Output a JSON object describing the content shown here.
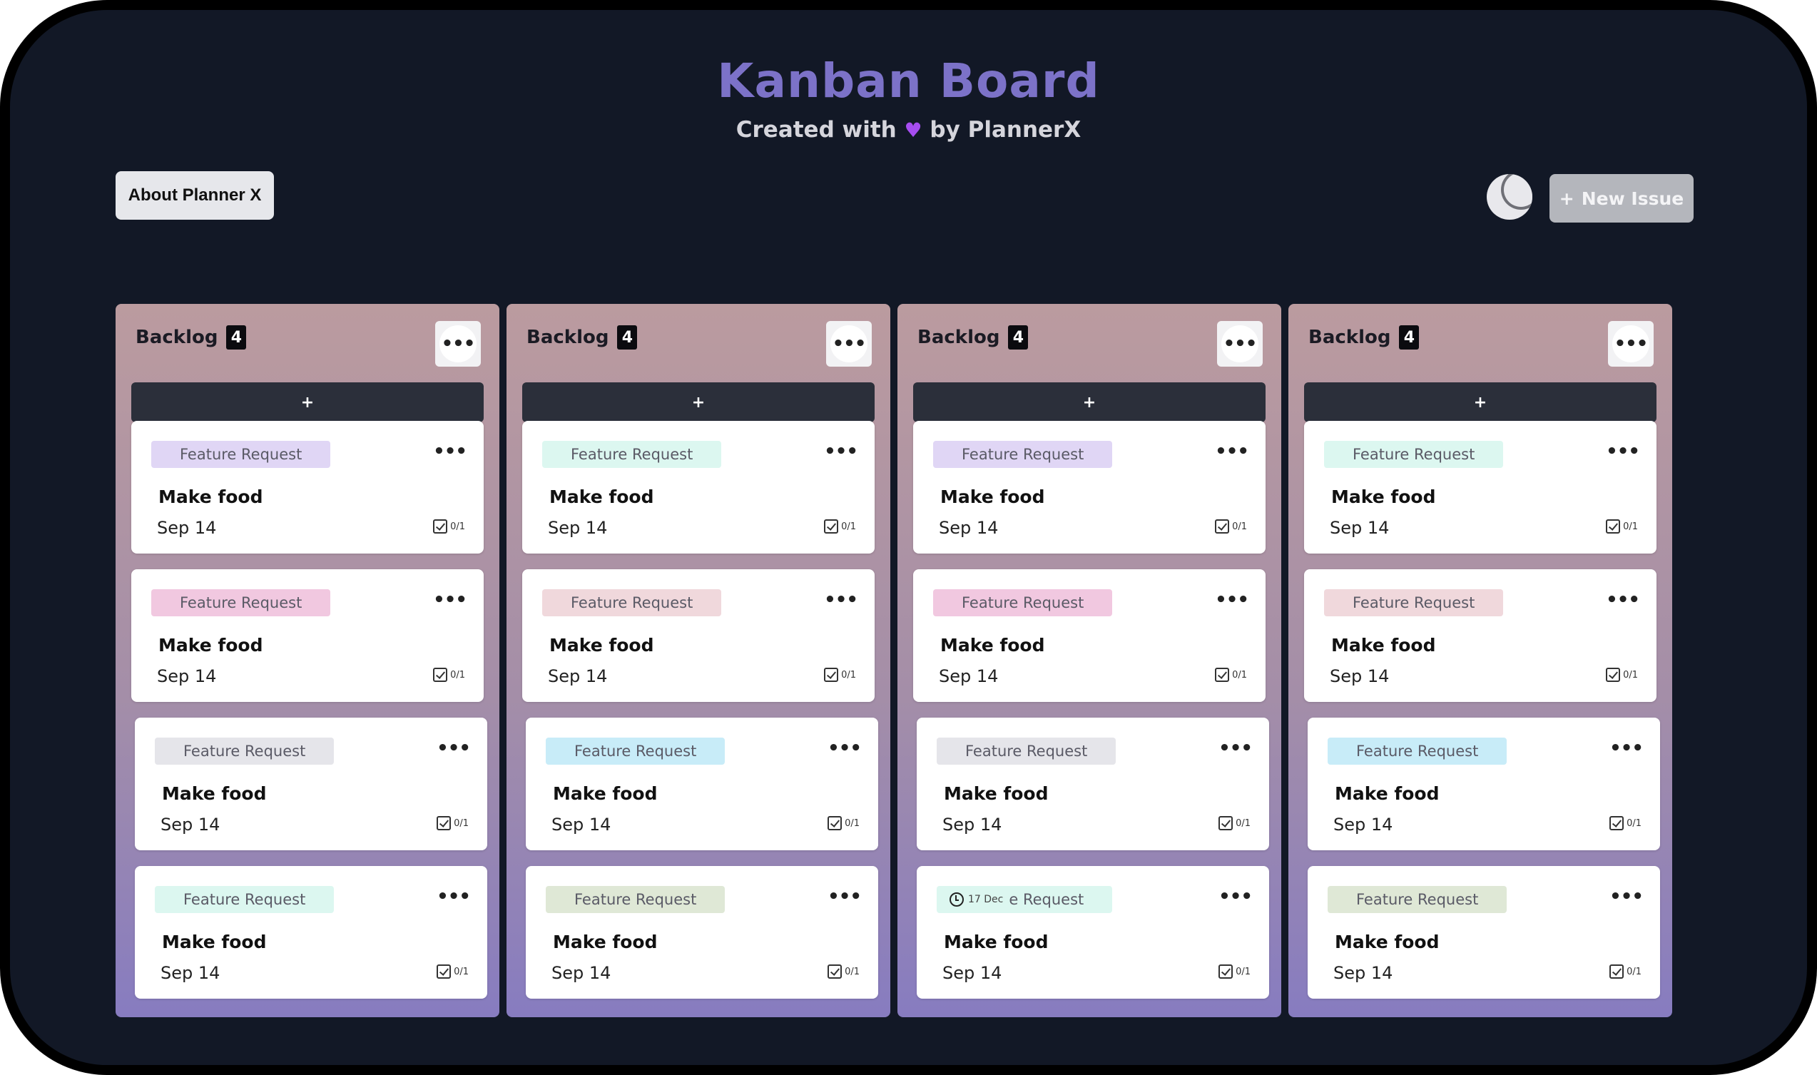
{
  "header": {
    "title": "Kanban Board",
    "subtitle_pre": "Created with",
    "subtitle_heart": "♥",
    "subtitle_post": "by PlannerX"
  },
  "toolbar": {
    "about_label": "About Planner X",
    "new_issue_icon": "+",
    "new_issue_label": "New Issue",
    "theme_icon": "moon-icon"
  },
  "colors": {
    "background": "#121826",
    "title": "#7c72c8",
    "add_bar": "#2b2f3a",
    "tag_purple": "#e0d6f5",
    "tag_pink": "#f1c8e0",
    "tag_gray": "#e5e5ea",
    "tag_mint": "#dcf7f0",
    "tag_rose": "#f0d8dc",
    "tag_blue": "#c8ecf8",
    "tag_sage": "#dfe8d6"
  },
  "columns": [
    {
      "title": "Backlog",
      "count": "4",
      "menu_icon": "•••",
      "add_label": "+",
      "cards": [
        {
          "tag": "Feature Request",
          "tag_color": "#e0d6f5",
          "title": "Make food",
          "date": "Sep 14",
          "checklist": "0/1"
        },
        {
          "tag": "Feature Request",
          "tag_color": "#f1c8e0",
          "title": "Make food",
          "date": "Sep 14",
          "checklist": "0/1"
        },
        {
          "tag": "Feature Request",
          "tag_color": "#e5e5ea",
          "title": "Make food",
          "date": "Sep 14",
          "checklist": "0/1"
        },
        {
          "tag": "Feature Request",
          "tag_color": "#dcf7f0",
          "title": "Make food",
          "date": "Sep 14",
          "checklist": "0/1"
        }
      ]
    },
    {
      "title": "Backlog",
      "count": "4",
      "menu_icon": "•••",
      "add_label": "+",
      "cards": [
        {
          "tag": "Feature Request",
          "tag_color": "#dcf7f0",
          "title": "Make food",
          "date": "Sep 14",
          "checklist": "0/1"
        },
        {
          "tag": "Feature Request",
          "tag_color": "#f0d8dc",
          "title": "Make food",
          "date": "Sep 14",
          "checklist": "0/1"
        },
        {
          "tag": "Feature Request",
          "tag_color": "#c8ecf8",
          "title": "Make food",
          "date": "Sep 14",
          "checklist": "0/1"
        },
        {
          "tag": "Feature Request",
          "tag_color": "#dfe8d6",
          "title": "Make food",
          "date": "Sep 14",
          "checklist": "0/1"
        }
      ]
    },
    {
      "title": "Backlog",
      "count": "4",
      "menu_icon": "•••",
      "add_label": "+",
      "cards": [
        {
          "tag": "Feature Request",
          "tag_color": "#e0d6f5",
          "title": "Make food",
          "date": "Sep 14",
          "checklist": "0/1"
        },
        {
          "tag": "Feature Request",
          "tag_color": "#f1c8e0",
          "title": "Make food",
          "date": "Sep 14",
          "checklist": "0/1"
        },
        {
          "tag": "Feature Request",
          "tag_color": "#e5e5ea",
          "title": "Make food",
          "date": "Sep 14",
          "checklist": "0/1"
        },
        {
          "tag": "e Request",
          "tag_color": "#dcf7f0",
          "title": "Make food",
          "date": "Sep 14",
          "checklist": "0/1",
          "due_badge": "17 Dec"
        }
      ]
    },
    {
      "title": "Backlog",
      "count": "4",
      "menu_icon": "•••",
      "add_label": "+",
      "cards": [
        {
          "tag": "Feature Request",
          "tag_color": "#dcf7f0",
          "title": "Make food",
          "date": "Sep 14",
          "checklist": "0/1"
        },
        {
          "tag": "Feature Request",
          "tag_color": "#f0d8dc",
          "title": "Make food",
          "date": "Sep 14",
          "checklist": "0/1"
        },
        {
          "tag": "Feature Request",
          "tag_color": "#c8ecf8",
          "title": "Make food",
          "date": "Sep 14",
          "checklist": "0/1"
        },
        {
          "tag": "Feature Request",
          "tag_color": "#dfe8d6",
          "title": "Make food",
          "date": "Sep 14",
          "checklist": "0/1"
        }
      ]
    }
  ]
}
